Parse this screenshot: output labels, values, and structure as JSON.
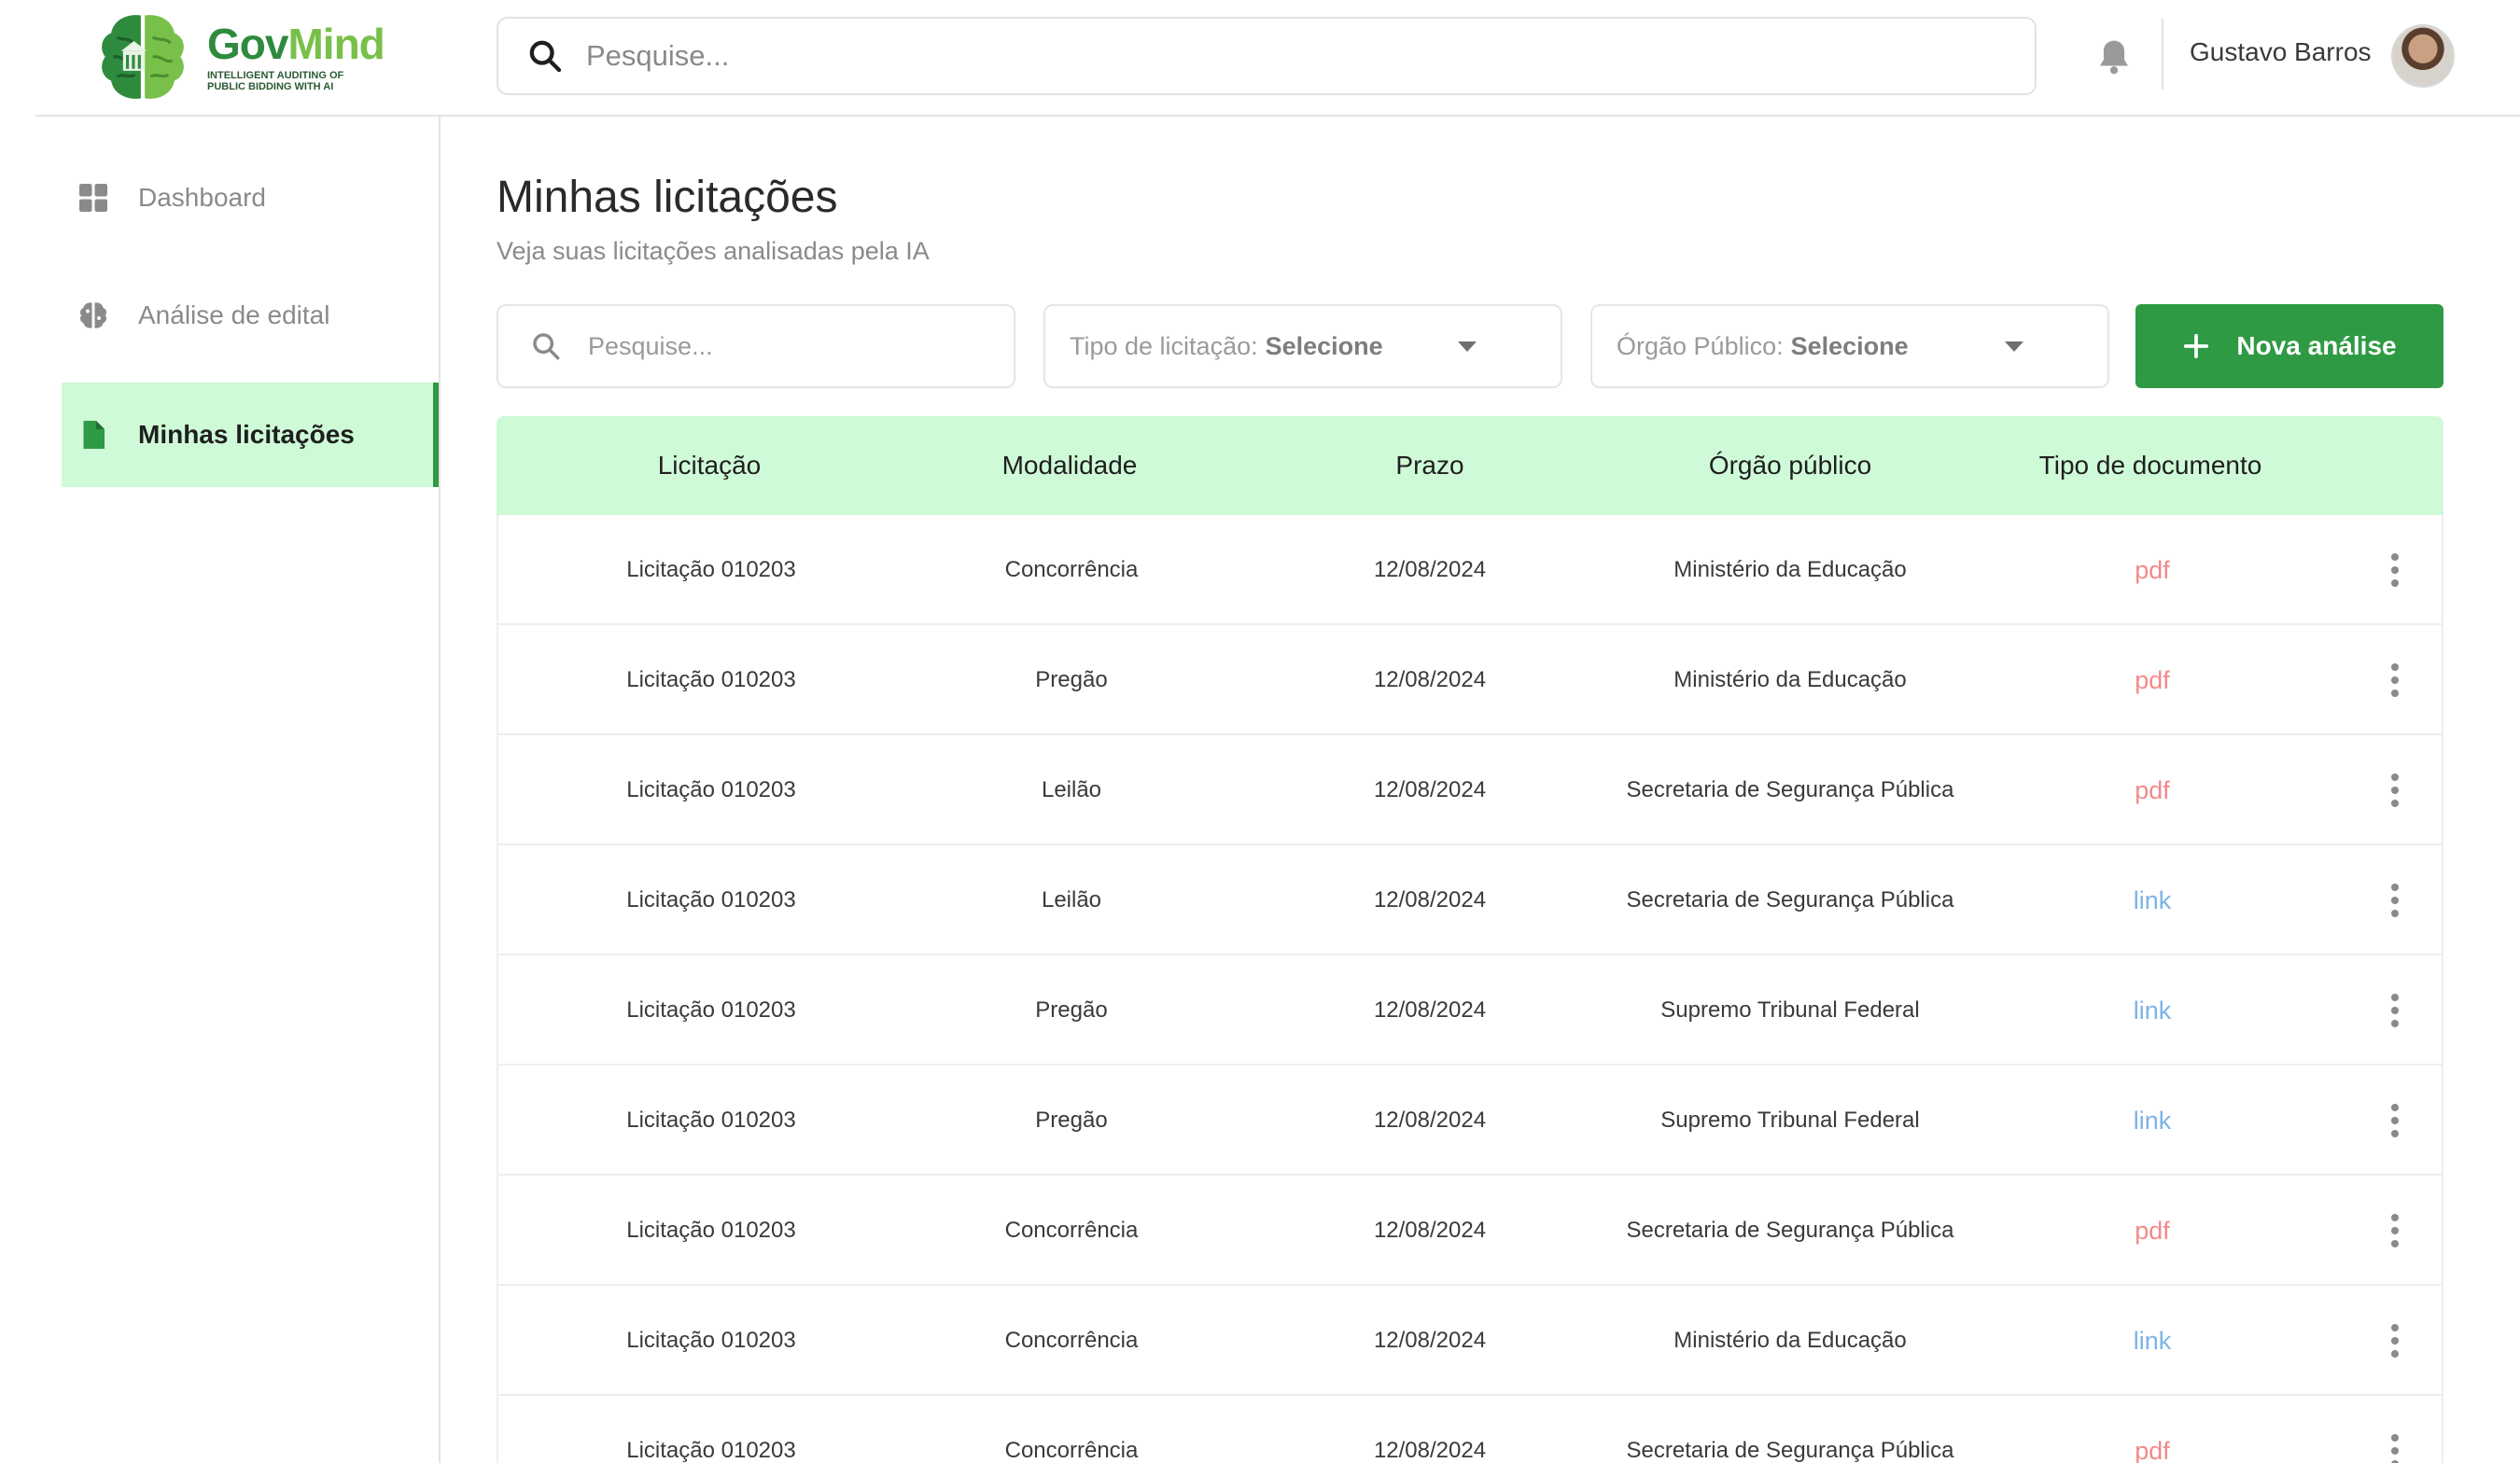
{
  "brand": {
    "name_part1": "Gov",
    "name_part2": "Mind",
    "tagline": "Intelligent auditing of public bidding with AI",
    "primary_color": "#2e9a44",
    "accent_color": "#79c04a"
  },
  "header": {
    "search_placeholder": "Pesquise...",
    "user_name": "Gustavo Barros"
  },
  "sidebar": {
    "items": [
      {
        "label": "Dashboard",
        "icon": "dashboard-grid-icon",
        "active": false
      },
      {
        "label": "Análise de edital",
        "icon": "brain-icon",
        "active": false
      },
      {
        "label": "Minhas licitações",
        "icon": "document-icon",
        "active": true
      }
    ]
  },
  "main": {
    "title": "Minhas licitações",
    "subtitle": "Veja suas licitações analisadas pela IA",
    "filters": {
      "search_placeholder": "Pesquise...",
      "type_label": "Tipo de licitação:",
      "type_value": "Selecione",
      "org_label": "Órgão Público:",
      "org_value": "Selecione"
    },
    "new_button": "Nova análise"
  },
  "table": {
    "columns": [
      "Licitação",
      "Modalidade",
      "Prazo",
      "Órgão público",
      "Tipo de documento"
    ],
    "rows": [
      [
        "Licitação 010203",
        "Concorrência",
        "12/08/2024",
        "Ministério da Educação",
        "pdf"
      ],
      [
        "Licitação 010203",
        "Pregão",
        "12/08/2024",
        "Ministério da Educação",
        "pdf"
      ],
      [
        "Licitação 010203",
        "Leilão",
        "12/08/2024",
        "Secretaria de Segurança Pública",
        "pdf"
      ],
      [
        "Licitação 010203",
        "Leilão",
        "12/08/2024",
        "Secretaria de Segurança Pública",
        "link"
      ],
      [
        "Licitação 010203",
        "Pregão",
        "12/08/2024",
        "Supremo Tribunal Federal",
        "link"
      ],
      [
        "Licitação 010203",
        "Pregão",
        "12/08/2024",
        "Supremo Tribunal Federal",
        "link"
      ],
      [
        "Licitação 010203",
        "Concorrência",
        "12/08/2024",
        "Secretaria de Segurança Pública",
        "pdf"
      ],
      [
        "Licitação 010203",
        "Concorrência",
        "12/08/2024",
        "Ministério da Educação",
        "link"
      ],
      [
        "Licitação 010203",
        "Concorrência",
        "12/08/2024",
        "Secretaria de Segurança Pública",
        "pdf"
      ]
    ],
    "doc_colors": {
      "pdf": "#f28a8a",
      "link": "#7db3e9"
    },
    "header_bg": "#cffad7"
  }
}
